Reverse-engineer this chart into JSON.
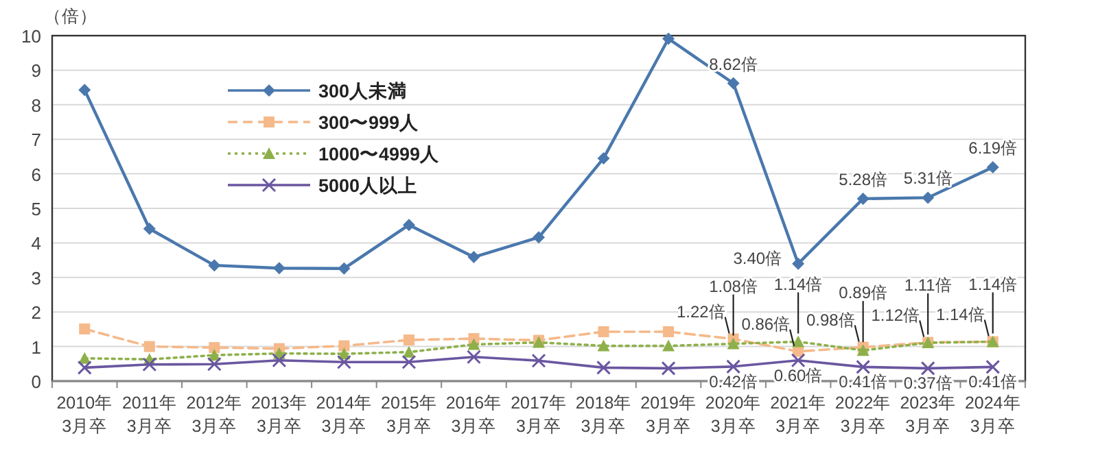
{
  "chart_data": {
    "type": "line",
    "ylabel": "（倍）",
    "categories": [
      "2010年\n3月卒",
      "2011年\n3月卒",
      "2012年\n3月卒",
      "2013年\n3月卒",
      "2014年\n3月卒",
      "2015年\n3月卒",
      "2016年\n3月卒",
      "2017年\n3月卒",
      "2018年\n3月卒",
      "2019年\n3月卒",
      "2020年\n3月卒",
      "2021年\n3月卒",
      "2022年\n3月卒",
      "2023年\n3月卒",
      "2024年\n3月卒"
    ],
    "series": [
      {
        "name": "300人未満",
        "color": "#4a78ad",
        "marker": "diamond",
        "line_style": "solid",
        "values": [
          8.43,
          4.41,
          3.35,
          3.27,
          3.26,
          4.52,
          3.59,
          4.16,
          6.45,
          9.91,
          8.62,
          3.4,
          5.28,
          5.31,
          6.19
        ],
        "value_labels": [
          null,
          null,
          null,
          null,
          null,
          null,
          null,
          null,
          null,
          null,
          "8.62倍",
          "3.40倍",
          "5.28倍",
          "5.31倍",
          "6.19倍"
        ]
      },
      {
        "name": "300〜999人",
        "color": "#f5b98a",
        "marker": "square",
        "line_style": "dashed",
        "values": [
          1.51,
          1.0,
          0.97,
          0.94,
          1.02,
          1.19,
          1.23,
          1.18,
          1.43,
          1.43,
          1.22,
          0.86,
          0.98,
          1.12,
          1.14
        ],
        "value_labels": [
          null,
          null,
          null,
          null,
          null,
          null,
          null,
          null,
          null,
          null,
          "1.22倍",
          "0.86倍",
          "0.98倍",
          "1.12倍",
          "1.14倍"
        ]
      },
      {
        "name": "1000〜4999人",
        "color": "#8db04a",
        "marker": "triangle",
        "line_style": "dotted",
        "values": [
          0.66,
          0.63,
          0.75,
          0.8,
          0.79,
          0.84,
          1.06,
          1.12,
          1.02,
          1.02,
          1.08,
          1.14,
          0.89,
          1.11,
          1.14
        ],
        "value_labels": [
          null,
          null,
          null,
          null,
          null,
          null,
          null,
          null,
          null,
          null,
          "1.08倍",
          "1.14倍",
          "0.89倍",
          "1.11倍",
          "1.14倍"
        ]
      },
      {
        "name": "5000人以上",
        "color": "#6a56a0",
        "marker": "cross",
        "line_style": "solid",
        "values": [
          0.39,
          0.48,
          0.49,
          0.6,
          0.55,
          0.55,
          0.7,
          0.59,
          0.39,
          0.37,
          0.42,
          0.6,
          0.41,
          0.37,
          0.41
        ],
        "value_labels": [
          null,
          null,
          null,
          null,
          null,
          null,
          null,
          null,
          null,
          null,
          "0.42倍",
          "0.60倍",
          "0.41倍",
          "0.37倍",
          "0.41倍"
        ]
      }
    ],
    "ylim": [
      0,
      10
    ],
    "yticks": [
      0,
      1,
      2,
      3,
      4,
      5,
      6,
      7,
      8,
      9,
      10
    ],
    "grid": "y",
    "legend": "top left"
  }
}
